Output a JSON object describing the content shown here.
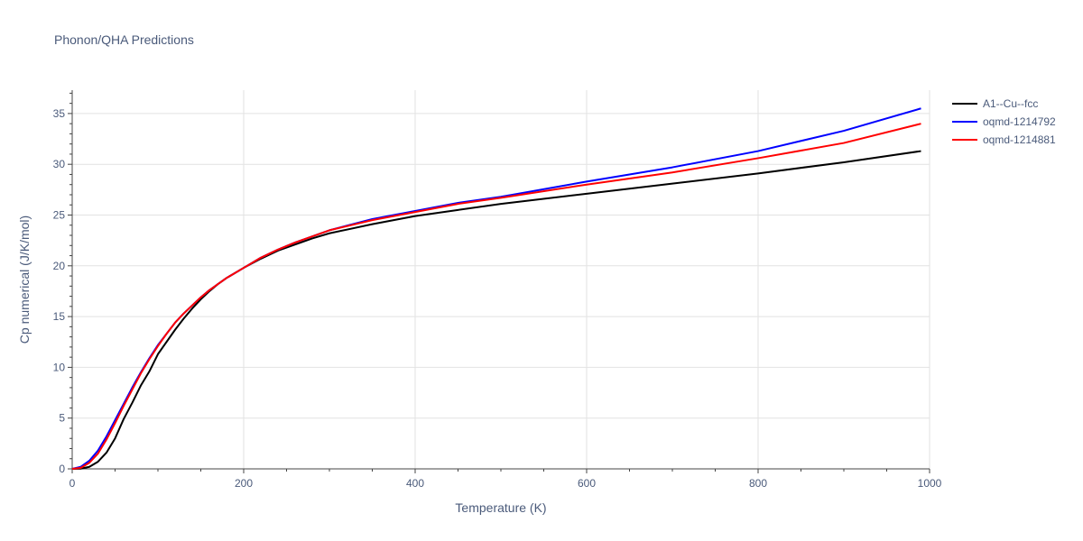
{
  "chart_data": {
    "type": "line",
    "title": "Phonon/QHA Predictions",
    "xlabel": "Temperature (K)",
    "ylabel": "Cp numerical (J/K/mol)",
    "xlim": [
      0,
      1000
    ],
    "ylim": [
      0,
      37.3
    ],
    "x_ticks": [
      0,
      200,
      400,
      600,
      800,
      1000
    ],
    "y_ticks": [
      0,
      5,
      10,
      15,
      20,
      25,
      30,
      35
    ],
    "grid": true,
    "legend_position": "top-right",
    "series": [
      {
        "name": "A1--Cu--fcc",
        "color": "#000000",
        "x": [
          0,
          10,
          20,
          30,
          40,
          50,
          60,
          70,
          80,
          90,
          100,
          110,
          120,
          130,
          140,
          150,
          160,
          170,
          180,
          200,
          220,
          240,
          260,
          280,
          300,
          350,
          400,
          450,
          500,
          600,
          700,
          800,
          900,
          990
        ],
        "y": [
          0,
          0.02,
          0.2,
          0.7,
          1.6,
          3.0,
          4.9,
          6.5,
          8.2,
          9.6,
          11.3,
          12.5,
          13.7,
          14.8,
          15.8,
          16.7,
          17.5,
          18.2,
          18.8,
          19.8,
          20.7,
          21.5,
          22.1,
          22.7,
          23.2,
          24.1,
          24.9,
          25.5,
          26.1,
          27.1,
          28.1,
          29.1,
          30.2,
          31.3
        ]
      },
      {
        "name": "oqmd-1214792",
        "color": "#0000ff",
        "x": [
          0,
          10,
          20,
          30,
          40,
          50,
          60,
          70,
          80,
          90,
          100,
          110,
          120,
          130,
          140,
          150,
          160,
          170,
          180,
          200,
          220,
          240,
          260,
          280,
          300,
          350,
          400,
          450,
          500,
          600,
          700,
          800,
          900,
          990
        ],
        "y": [
          0,
          0.2,
          0.8,
          1.8,
          3.2,
          4.8,
          6.4,
          8.0,
          9.5,
          10.9,
          12.2,
          13.3,
          14.4,
          15.3,
          16.1,
          16.9,
          17.6,
          18.2,
          18.8,
          19.8,
          20.8,
          21.6,
          22.3,
          22.9,
          23.5,
          24.6,
          25.4,
          26.2,
          26.8,
          28.3,
          29.7,
          31.3,
          33.3,
          35.5
        ]
      },
      {
        "name": "oqmd-1214881",
        "color": "#ff0000",
        "x": [
          0,
          10,
          20,
          30,
          40,
          50,
          60,
          70,
          80,
          90,
          100,
          110,
          120,
          130,
          140,
          150,
          160,
          170,
          180,
          200,
          220,
          240,
          260,
          280,
          300,
          350,
          400,
          450,
          500,
          600,
          700,
          800,
          900,
          990
        ],
        "y": [
          0,
          0.1,
          0.6,
          1.5,
          2.9,
          4.5,
          6.2,
          7.8,
          9.4,
          10.8,
          12.1,
          13.3,
          14.4,
          15.3,
          16.1,
          16.9,
          17.6,
          18.2,
          18.8,
          19.8,
          20.8,
          21.6,
          22.3,
          22.9,
          23.5,
          24.5,
          25.3,
          26.1,
          26.7,
          28.0,
          29.2,
          30.6,
          32.1,
          34.0
        ]
      }
    ]
  }
}
